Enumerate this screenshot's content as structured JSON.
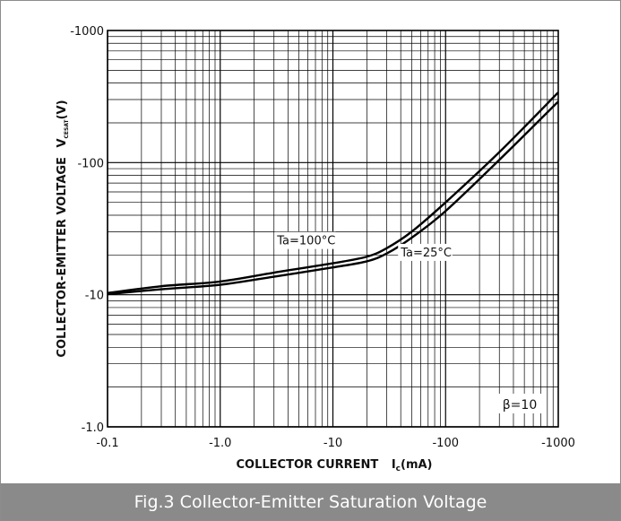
{
  "caption": "Fig.3 Collector-Emitter Saturation Voltage",
  "chart_data": {
    "type": "line",
    "title": "",
    "xlabel": "COLLECTOR CURRENT",
    "xlabel_symbol": "I",
    "xlabel_sub": "c",
    "xlabel_unit": "(mA)",
    "ylabel": "COLLECTOR-EMITTER VOLTAGE",
    "ylabel_symbol": "V",
    "ylabel_sub": "CESAT",
    "ylabel_unit": "(V)",
    "x_scale": "log",
    "y_scale": "log",
    "xlim": [
      -0.1,
      -1000
    ],
    "ylim": [
      -1.0,
      -1000
    ],
    "x_ticks": [
      {
        "value": -0.1,
        "label": "-0.1"
      },
      {
        "value": -1,
        "label": "-1.0"
      },
      {
        "value": -10,
        "label": "-10"
      },
      {
        "value": -100,
        "label": "-100"
      },
      {
        "value": -1000,
        "label": "-1000"
      }
    ],
    "y_ticks": [
      {
        "value": -1,
        "label": "-1.0"
      },
      {
        "value": -10,
        "label": "-10"
      },
      {
        "value": -100,
        "label": "-100"
      },
      {
        "value": -1000,
        "label": "-1000"
      }
    ],
    "grid": true,
    "condition": "β=10",
    "series": [
      {
        "name": "Ta=100°C",
        "color": "#000000",
        "x": [
          -0.1,
          -0.3,
          -1,
          -3,
          -10,
          -20,
          -30,
          -50,
          -100,
          -300,
          -1000
        ],
        "y": [
          -10.3,
          -11.6,
          -12.6,
          -14.7,
          -17.3,
          -19.4,
          -22.5,
          -30,
          -50,
          -120,
          -340
        ]
      },
      {
        "name": "Ta=25°C",
        "color": "#000000",
        "x": [
          -0.1,
          -0.3,
          -1,
          -3,
          -10,
          -20,
          -30,
          -50,
          -100,
          -300,
          -1000
        ],
        "y": [
          -10.1,
          -11.0,
          -11.9,
          -13.7,
          -16.1,
          -17.9,
          -20.5,
          -27,
          -43,
          -105,
          -290
        ]
      }
    ],
    "annotations": [
      {
        "text": "Ta=100°C",
        "x": -3.2,
        "y": -24
      },
      {
        "text": "Ta=25°C",
        "x": -40,
        "y": -19.5
      }
    ]
  }
}
